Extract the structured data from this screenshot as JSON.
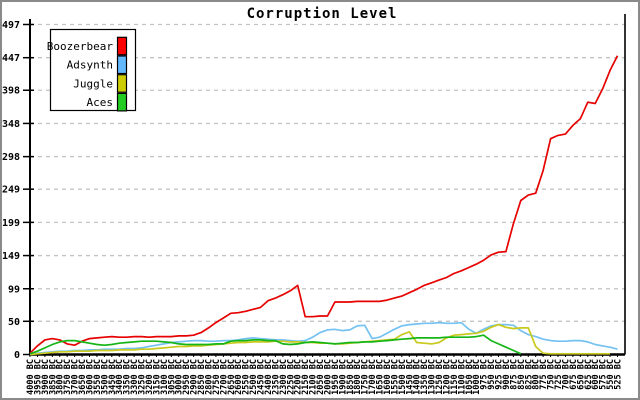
{
  "chart_data": {
    "type": "line",
    "title": "Corruption Level",
    "xlabel": "",
    "ylabel": "",
    "ylim": [
      0,
      497
    ],
    "y_tick_labels": [
      "0",
      "50",
      "99",
      "149",
      "199",
      "249",
      "298",
      "348",
      "398",
      "447",
      "497"
    ],
    "y_tick_values": [
      0,
      50,
      99,
      149,
      199,
      249,
      298,
      348,
      398,
      447,
      497
    ],
    "grid": "horizontal dashed gray",
    "legend_position": "top-left",
    "categories": [
      "4000 BC",
      "3950 BC",
      "3900 BC",
      "3850 BC",
      "3800 BC",
      "3750 BC",
      "3700 BC",
      "3650 BC",
      "3600 BC",
      "3550 BC",
      "3500 BC",
      "3450 BC",
      "3400 BC",
      "3350 BC",
      "3300 BC",
      "3250 BC",
      "3200 BC",
      "3150 BC",
      "3100 BC",
      "3050 BC",
      "3000 BC",
      "2950 BC",
      "2900 BC",
      "2850 BC",
      "2800 BC",
      "2750 BC",
      "2700 BC",
      "2650 BC",
      "2600 BC",
      "2550 BC",
      "2500 BC",
      "2450 BC",
      "2400 BC",
      "2350 BC",
      "2300 BC",
      "2250 BC",
      "2200 BC",
      "2150 BC",
      "2100 BC",
      "2050 BC",
      "2000 BC",
      "1950 BC",
      "1900 BC",
      "1850 BC",
      "1800 BC",
      "1750 BC",
      "1700 BC",
      "1650 BC",
      "1600 BC",
      "1550 BC",
      "1500 BC",
      "1450 BC",
      "1400 BC",
      "1350 BC",
      "1300 BC",
      "1250 BC",
      "1200 BC",
      "1150 BC",
      "1100 BC",
      "1050 BC",
      "1000 BC",
      "975 BC",
      "950 BC",
      "925 BC",
      "900 BC",
      "875 BC",
      "850 BC",
      "825 BC",
      "800 BC",
      "775 BC",
      "750 BC",
      "725 BC",
      "700 BC",
      "675 BC",
      "650 BC",
      "625 BC",
      "600 BC",
      "575 BC",
      "550 BC",
      "525 BC"
    ],
    "series": [
      {
        "name": "Boozerbear",
        "color": "#e60000",
        "swatch_color": "#ff0000",
        "values": [
          2,
          13,
          22,
          24,
          22,
          16,
          14,
          20,
          24,
          25,
          26,
          27,
          26,
          26,
          27,
          27,
          26,
          27,
          27,
          27,
          28,
          28,
          29,
          33,
          40,
          48,
          55,
          62,
          63,
          65,
          68,
          71,
          81,
          85,
          90,
          96,
          104,
          57,
          57,
          58,
          58,
          79,
          79,
          79,
          80,
          80,
          80,
          80,
          82,
          85,
          88,
          93,
          98,
          104,
          108,
          112,
          116,
          122,
          126,
          131,
          136,
          142,
          150,
          154,
          155,
          197,
          232,
          240,
          243,
          277,
          325,
          330,
          332,
          345,
          355,
          380,
          378,
          400,
          428,
          450
        ]
      },
      {
        "name": "Adsynth",
        "color": "#74c2f2",
        "swatch_color": "#63b8ff",
        "values": [
          1,
          2,
          3,
          4,
          5,
          5,
          6,
          6,
          7,
          7,
          8,
          8,
          8,
          9,
          9,
          10,
          12,
          14,
          16,
          18,
          19,
          20,
          21,
          21,
          20,
          20,
          21,
          21,
          22,
          24,
          25,
          24,
          23,
          22,
          22,
          21,
          20,
          21,
          26,
          33,
          37,
          38,
          36,
          37,
          43,
          44,
          24,
          26,
          32,
          38,
          43,
          45,
          46,
          47,
          47,
          48,
          47,
          47,
          48,
          38,
          32,
          38,
          43,
          45,
          45,
          44,
          36,
          30,
          27,
          23,
          21,
          20,
          20,
          21,
          21,
          19,
          15,
          13,
          11,
          8
        ]
      },
      {
        "name": "Juggle",
        "color": "#c9c91e",
        "swatch_color": "#cccc00",
        "values": [
          0,
          1,
          2,
          3,
          4,
          4,
          5,
          5,
          5,
          6,
          6,
          6,
          7,
          7,
          7,
          8,
          8,
          9,
          10,
          11,
          12,
          12,
          13,
          13,
          14,
          15,
          16,
          17,
          18,
          18,
          19,
          19,
          19,
          20,
          20,
          19,
          19,
          18,
          18,
          17,
          17,
          16,
          16,
          17,
          18,
          19,
          20,
          21,
          22,
          23,
          30,
          34,
          18,
          17,
          16,
          18,
          25,
          29,
          30,
          31,
          32,
          35,
          41,
          45,
          41,
          39,
          40,
          40,
          12,
          2,
          1,
          1,
          1,
          1,
          1,
          1,
          1,
          1,
          1,
          null
        ]
      },
      {
        "name": "Aces",
        "color": "#16b516",
        "swatch_color": "#22cc22",
        "values": [
          1,
          5,
          10,
          15,
          19,
          21,
          21,
          19,
          17,
          15,
          14,
          15,
          17,
          18,
          19,
          20,
          20,
          20,
          19,
          18,
          16,
          15,
          15,
          15,
          15,
          16,
          16,
          20,
          21,
          21,
          22,
          22,
          21,
          21,
          16,
          15,
          16,
          18,
          19,
          18,
          17,
          16,
          17,
          18,
          18,
          19,
          19,
          20,
          21,
          22,
          23,
          24,
          25,
          25,
          25,
          25,
          26,
          26,
          26,
          26,
          27,
          29,
          21,
          16,
          11,
          6,
          1,
          null,
          null,
          null,
          null,
          null,
          null,
          null,
          null,
          null,
          null,
          null,
          null,
          null
        ]
      }
    ]
  }
}
